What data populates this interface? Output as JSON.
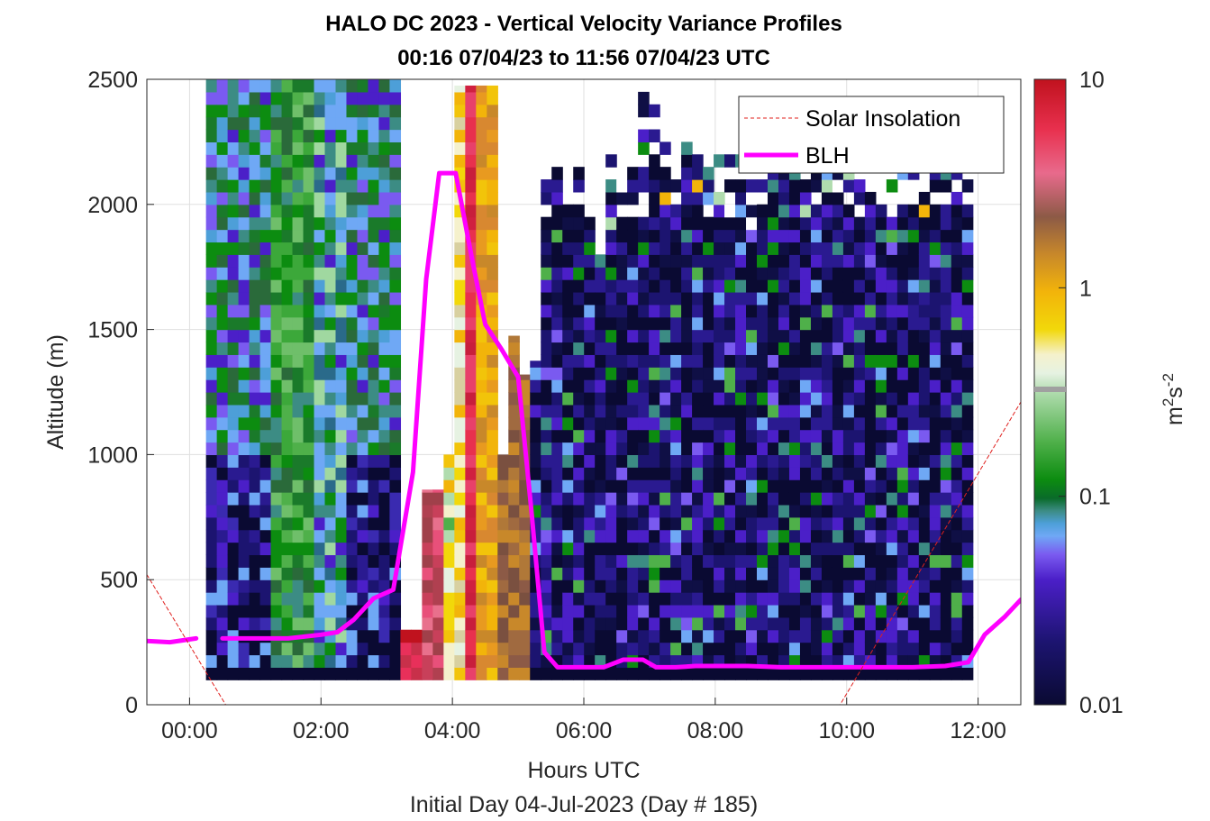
{
  "chart_data": {
    "type": "heatmap",
    "title": [
      "HALO DC 2023 - Vertical Velocity Variance Profiles",
      "00:16 07/04/23 to 11:56 07/04/23  UTC"
    ],
    "xlabel": "Hours UTC",
    "xlabel2": "Initial Day 04-Jul-2023 (Day # 185)",
    "ylabel": "Altitude (m)",
    "x_ticks": [
      "00:00",
      "02:00",
      "04:00",
      "06:00",
      "08:00",
      "10:00",
      "12:00"
    ],
    "x_tick_hours": [
      0,
      2,
      4,
      6,
      8,
      10,
      12
    ],
    "xlim_hours": [
      -0.65,
      12.65
    ],
    "y_ticks": [
      "0",
      "500",
      "1000",
      "1500",
      "2000",
      "2500"
    ],
    "y_tick_values": [
      0,
      500,
      1000,
      1500,
      2000,
      2500
    ],
    "ylim": [
      0,
      2500
    ],
    "grid": true,
    "colorbar": {
      "label": "m²s⁻²",
      "label_base": "m",
      "label_sup1": "2",
      "label_mid": "s",
      "label_sup2": "-2",
      "scale": "log",
      "ticks": [
        "0.01",
        "0.1",
        "1",
        "10"
      ],
      "range": [
        0.01,
        10
      ]
    },
    "legend": {
      "placement": "top-right",
      "entries": [
        {
          "name": "Solar Insolation",
          "color": "#e0201e",
          "style": "dashed"
        },
        {
          "name": "BLH",
          "color": "#ff00ff",
          "style": "solid"
        }
      ]
    },
    "series": [
      {
        "name": "BLH",
        "x_hours": [
          -0.65,
          -0.3,
          0.1,
          0.25,
          0.5,
          1.0,
          1.5,
          2.0,
          2.25,
          2.5,
          2.8,
          3.1,
          3.4,
          3.6,
          3.8,
          4.05,
          4.3,
          4.5,
          4.75,
          5.0,
          5.2,
          5.4,
          5.6,
          5.8,
          6.0,
          6.3,
          6.6,
          6.9,
          7.1,
          7.4,
          7.7,
          8.0,
          8.5,
          9.0,
          9.5,
          10.0,
          10.5,
          11.0,
          11.5,
          11.85,
          12.1,
          12.4,
          12.65
        ],
        "y": [
          255,
          250,
          265,
          null,
          265,
          265,
          265,
          280,
          290,
          340,
          425,
          460,
          930,
          1700,
          2125,
          2125,
          1780,
          1520,
          1420,
          1310,
          780,
          210,
          150,
          150,
          150,
          150,
          180,
          180,
          150,
          150,
          155,
          155,
          155,
          150,
          150,
          150,
          150,
          150,
          155,
          170,
          280,
          350,
          420
        ]
      },
      {
        "name": "Solar Insolation",
        "x_hours": [
          -0.65,
          0.55,
          9.9,
          12.65
        ],
        "y": [
          520,
          0,
          0,
          1210
        ]
      }
    ],
    "heatmap": {
      "x_start_hours": 0.25,
      "x_end_hours": 11.92,
      "cell_hours": 0.1667,
      "row_alts_m": [
        125,
        175,
        225,
        275,
        325,
        375,
        425,
        475,
        525,
        575,
        625,
        675,
        725,
        775,
        825,
        875,
        925,
        975,
        1025,
        1075,
        1125,
        1175,
        1225,
        1275,
        1325,
        1375,
        1425,
        1475,
        1525,
        1575,
        1625,
        1675,
        1725,
        1775,
        1825,
        1875,
        1925,
        1975,
        2025,
        2075,
        2125,
        2175,
        2225,
        2275,
        2325,
        2375,
        2425,
        2475
      ],
      "row_height_m": 50,
      "value_units": "m^2 s^-2",
      "data_top_altitude_m": [
        2500,
        2500,
        2500,
        2500,
        2500,
        2500,
        2500,
        2500,
        2500,
        2500,
        2500,
        2500,
        2500,
        2500,
        2500,
        2500,
        2500,
        2500,
        300,
        300,
        860,
        860,
        1000,
        2475,
        2475,
        2475,
        2475,
        1000,
        1475,
        1320,
        1375,
        2100,
        2150,
        2000,
        2150,
        2000,
        1800,
        2200,
        2100,
        2400,
        2450,
        2400,
        2300,
        2200,
        2300,
        2200,
        2200,
        2200,
        2200,
        2200,
        2300,
        2150,
        2400,
        2400,
        2400,
        2300,
        2400,
        2200,
        2450,
        2200,
        2100,
        2050,
        2000,
        2100,
        2150,
        2400,
        2400,
        2400,
        2400,
        2350,
        2100
      ]
    }
  }
}
